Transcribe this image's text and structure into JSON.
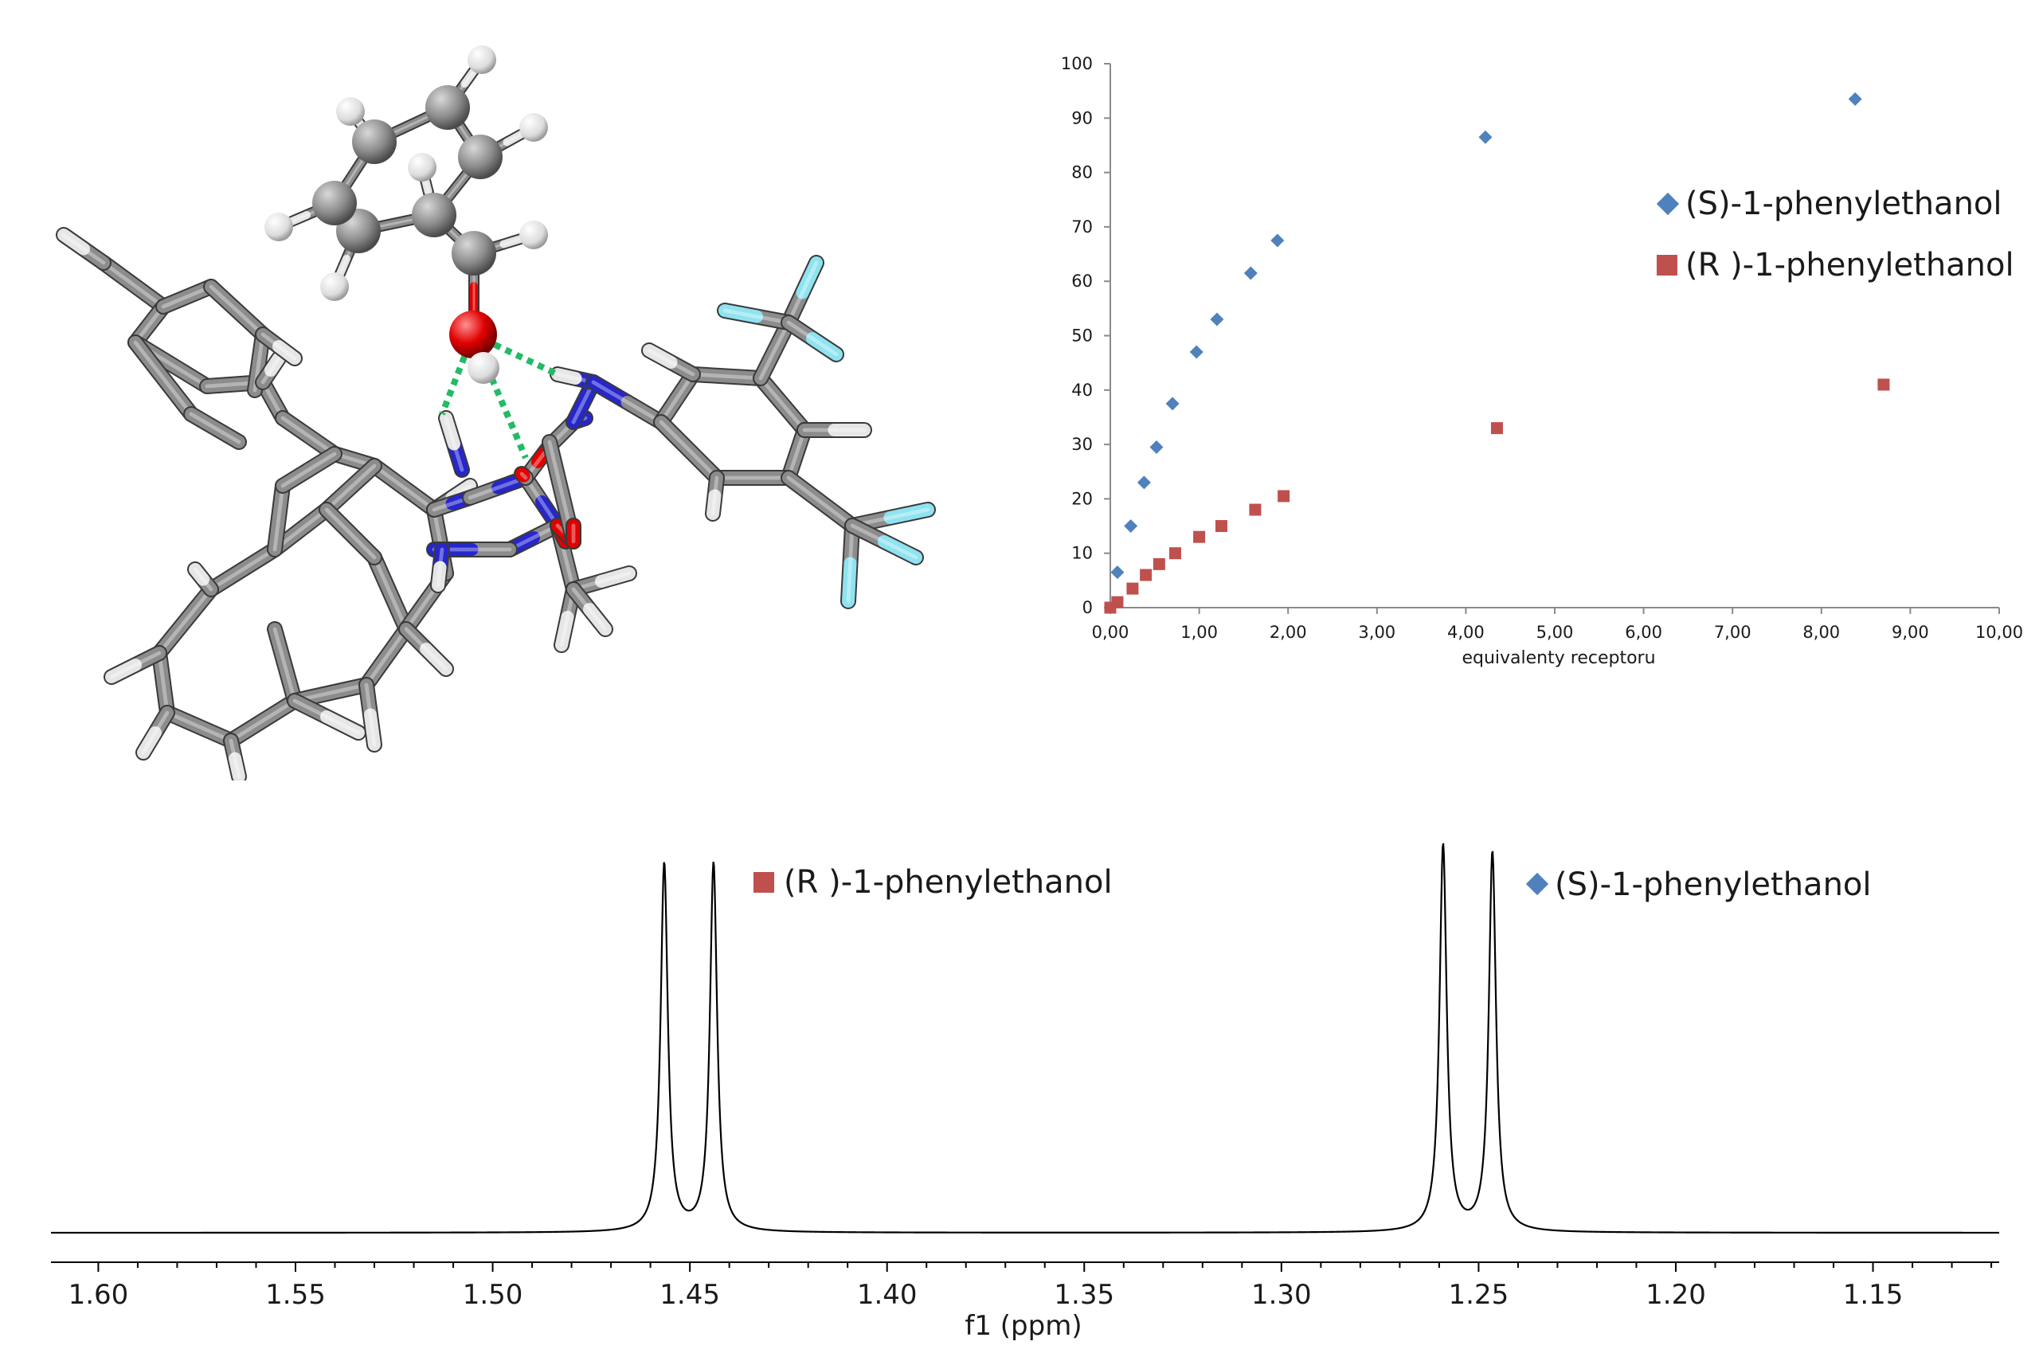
{
  "molecule": {
    "colors": {
      "carbon": "#8c8c8c",
      "nitrogen": "#2626cc",
      "oxygen": "#e00000",
      "hydrogen": "#e6e6e6",
      "fluorine": "#8fe3f0",
      "hbond": "#22bb66"
    }
  },
  "chart_data": [
    {
      "type": "scatter",
      "xlabel": "equivalenty receptoru",
      "ylabel": "",
      "xlim": [
        0,
        10
      ],
      "ylim": [
        0,
        100
      ],
      "x_ticks": [
        "0,00",
        "1,00",
        "2,00",
        "3,00",
        "4,00",
        "5,00",
        "6,00",
        "7,00",
        "8,00",
        "9,00",
        "10,00"
      ],
      "y_ticks": [
        "0",
        "10",
        "20",
        "30",
        "40",
        "50",
        "60",
        "70",
        "80",
        "90",
        "100"
      ],
      "legend_position": "right",
      "series": [
        {
          "name": "(S)-1-phenylethanol",
          "marker": "diamond",
          "color": "#4f81bd",
          "x": [
            0.08,
            0.23,
            0.38,
            0.52,
            0.7,
            0.97,
            1.2,
            1.58,
            1.88,
            4.22,
            8.38
          ],
          "y": [
            6.5,
            15,
            23,
            29.5,
            37.5,
            47,
            53,
            61.5,
            67.5,
            86.5,
            93.5
          ]
        },
        {
          "name": "(R )-1-phenylethanol",
          "marker": "square",
          "color": "#c0504d",
          "x": [
            0.0,
            0.08,
            0.25,
            0.4,
            0.55,
            0.73,
            1.0,
            1.25,
            1.63,
            1.95,
            4.35,
            8.7
          ],
          "y": [
            0,
            1,
            3.5,
            6,
            8,
            10,
            13,
            15,
            18,
            20.5,
            33,
            41
          ]
        }
      ]
    },
    {
      "type": "line",
      "xlabel": "f1 (ppm)",
      "xlim": [
        1.612,
        1.118
      ],
      "x_ticks": [
        "1.60",
        "1.55",
        "1.50",
        "1.45",
        "1.40",
        "1.35",
        "1.30",
        "1.25",
        "1.20",
        "1.15"
      ],
      "x_tick_values": [
        1.6,
        1.55,
        1.5,
        1.45,
        1.4,
        1.35,
        1.3,
        1.25,
        1.2,
        1.15
      ],
      "minor_step": 0.01,
      "peaks": [
        {
          "ppm": 1.4565,
          "height": 1.0
        },
        {
          "ppm": 1.444,
          "height": 1.0
        },
        {
          "ppm": 1.259,
          "height": 1.05
        },
        {
          "ppm": 1.2465,
          "height": 1.03
        }
      ],
      "legend": [
        {
          "name": "(R )-1-phenylethanol",
          "marker": "square",
          "color": "#c0504d",
          "position": "near-left-peaks"
        },
        {
          "name": "(S)-1-phenylethanol",
          "marker": "diamond",
          "color": "#4f81bd",
          "position": "near-right-peaks"
        }
      ]
    }
  ]
}
